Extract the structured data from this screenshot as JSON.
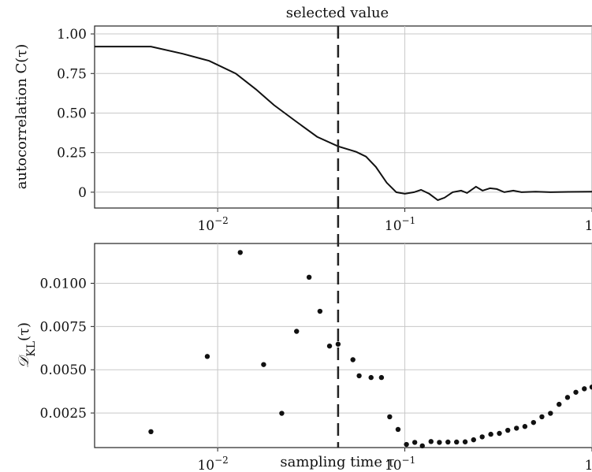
{
  "chart_data": [
    {
      "type": "line",
      "title": "selected value",
      "ylabel": "autocorrelation C(τ)",
      "xlabel": "",
      "xscale": "log",
      "xlim": [
        0.0022,
        1.0
      ],
      "ylim": [
        -0.1,
        1.05
      ],
      "yticks": [
        0,
        0.25,
        0.5,
        0.75,
        1.0
      ],
      "ytick_labels": [
        "0",
        "0.25",
        "0.50",
        "0.75",
        "1.00"
      ],
      "xticks": [
        0.01,
        0.1,
        1
      ],
      "xtick_labels": [
        "10",
        "10",
        "1"
      ],
      "xtick_exponents": [
        "−2",
        "−1",
        ""
      ],
      "grid": true,
      "vline": 0.044,
      "series": [
        {
          "color": "#111111",
          "points": [
            [
              0.0022,
              0.92
            ],
            [
              0.0044,
              0.92
            ],
            [
              0.0065,
              0.875
            ],
            [
              0.009,
              0.83
            ],
            [
              0.0125,
              0.75
            ],
            [
              0.016,
              0.65
            ],
            [
              0.02,
              0.55
            ],
            [
              0.026,
              0.45
            ],
            [
              0.034,
              0.35
            ],
            [
              0.044,
              0.29
            ],
            [
              0.055,
              0.255
            ],
            [
              0.062,
              0.225
            ],
            [
              0.07,
              0.16
            ],
            [
              0.08,
              0.06
            ],
            [
              0.09,
              0.0
            ],
            [
              0.1,
              -0.01
            ],
            [
              0.112,
              0.0
            ],
            [
              0.122,
              0.015
            ],
            [
              0.135,
              -0.01
            ],
            [
              0.15,
              -0.05
            ],
            [
              0.163,
              -0.035
            ],
            [
              0.18,
              0.0
            ],
            [
              0.2,
              0.01
            ],
            [
              0.215,
              -0.005
            ],
            [
              0.24,
              0.035
            ],
            [
              0.26,
              0.01
            ],
            [
              0.285,
              0.025
            ],
            [
              0.31,
              0.02
            ],
            [
              0.34,
              0.0
            ],
            [
              0.38,
              0.01
            ],
            [
              0.42,
              0.0
            ],
            [
              0.5,
              0.003
            ],
            [
              0.6,
              0.0
            ],
            [
              0.75,
              0.002
            ],
            [
              1.0,
              0.003
            ]
          ]
        }
      ]
    },
    {
      "type": "scatter",
      "title": "",
      "ylabel": "𝒟KL(τ)",
      "ylabel_main": "𝒟",
      "ylabel_sub": "KL",
      "ylabel_tail": "(τ)",
      "xlabel": "sampling time τ",
      "xscale": "log",
      "xlim": [
        0.0022,
        1.0
      ],
      "ylim": [
        0.0005,
        0.0123
      ],
      "yticks": [
        0.0025,
        0.005,
        0.0075,
        0.01
      ],
      "ytick_labels": [
        "0.0025",
        "0.0050",
        "0.0075",
        "0.0100"
      ],
      "xticks": [
        0.01,
        0.1,
        1
      ],
      "xtick_labels": [
        "10",
        "10",
        "1"
      ],
      "xtick_exponents": [
        "−2",
        "−1",
        ""
      ],
      "grid": true,
      "vline": 0.044,
      "series": [
        {
          "color": "#111111",
          "points": [
            [
              0.0044,
              0.00142
            ],
            [
              0.0088,
              0.00577
            ],
            [
              0.0132,
              0.01178
            ],
            [
              0.0176,
              0.0053
            ],
            [
              0.022,
              0.00248
            ],
            [
              0.0264,
              0.00722
            ],
            [
              0.0308,
              0.01035
            ],
            [
              0.0352,
              0.00838
            ],
            [
              0.0396,
              0.00637
            ],
            [
              0.044,
              0.00648
            ],
            [
              0.0528,
              0.00558
            ],
            [
              0.057,
              0.00465
            ],
            [
              0.066,
              0.00455
            ],
            [
              0.075,
              0.00455
            ],
            [
              0.083,
              0.00228
            ],
            [
              0.092,
              0.00155
            ],
            [
              0.102,
              0.00068
            ],
            [
              0.113,
              0.0008
            ],
            [
              0.124,
              0.0006
            ],
            [
              0.138,
              0.00085
            ],
            [
              0.153,
              0.0008
            ],
            [
              0.17,
              0.00082
            ],
            [
              0.189,
              0.00082
            ],
            [
              0.21,
              0.00083
            ],
            [
              0.233,
              0.00095
            ],
            [
              0.259,
              0.00112
            ],
            [
              0.288,
              0.00127
            ],
            [
              0.32,
              0.00132
            ],
            [
              0.355,
              0.0015
            ],
            [
              0.395,
              0.00162
            ],
            [
              0.438,
              0.00172
            ],
            [
              0.487,
              0.00195
            ],
            [
              0.54,
              0.00228
            ],
            [
              0.6,
              0.00248
            ],
            [
              0.667,
              0.003
            ],
            [
              0.74,
              0.0034
            ],
            [
              0.82,
              0.0037
            ],
            [
              0.91,
              0.0039
            ],
            [
              1.0,
              0.004
            ]
          ]
        }
      ]
    }
  ]
}
